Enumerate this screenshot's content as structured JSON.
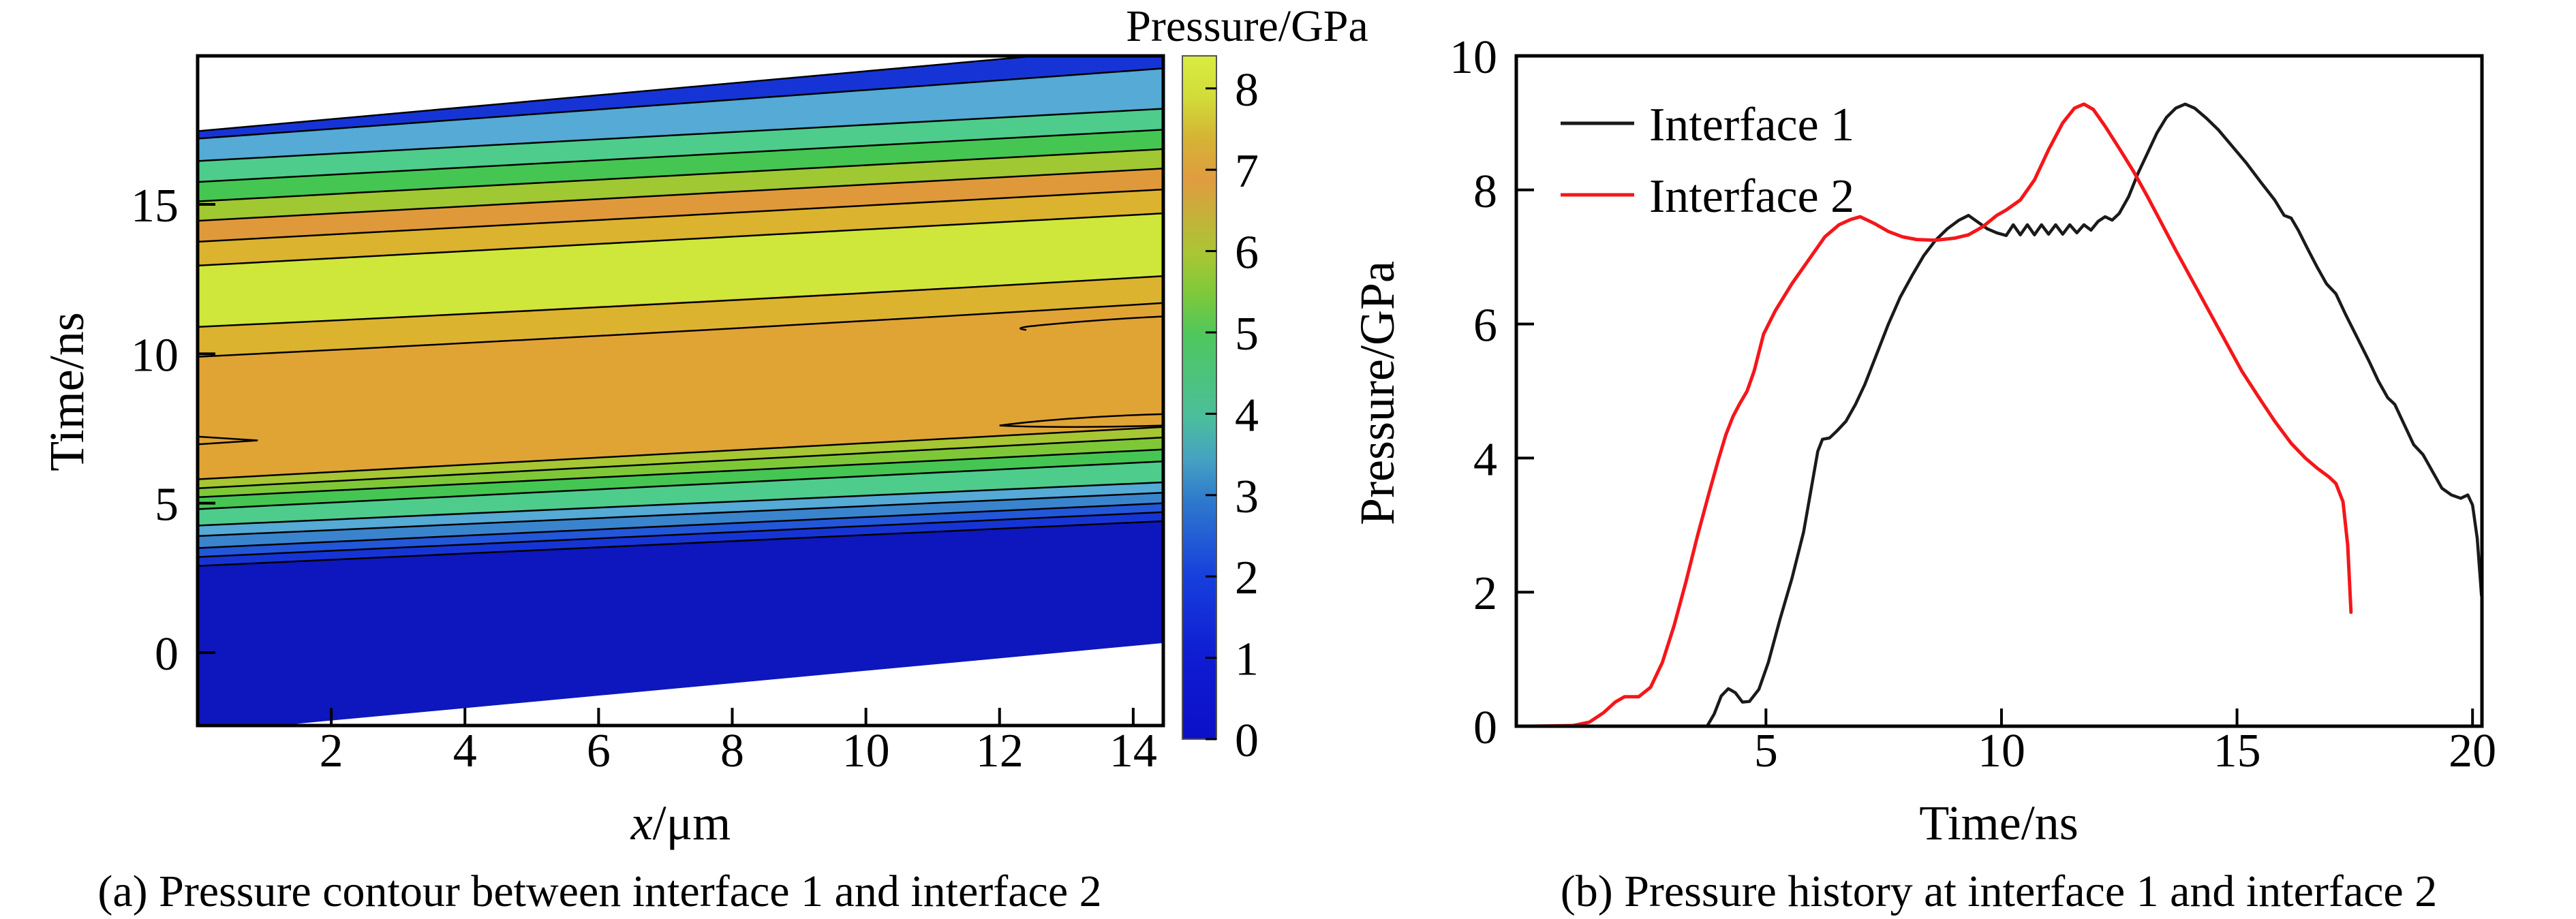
{
  "chart_data": [
    {
      "type": "heatmap",
      "panel": "a",
      "title": "(a) Pressure contour between interface 1 and interface 2",
      "xlabel": "x/μm",
      "xlabel_italic": "x",
      "xlabel_unit": "/μm",
      "ylabel": "Time/ns",
      "x_range": [
        0,
        14.45
      ],
      "y_range": [
        -2.44,
        19.97
      ],
      "x_ticks": [
        2,
        4,
        6,
        8,
        10,
        12,
        14
      ],
      "y_ticks": [
        0,
        5,
        10,
        15
      ],
      "grid": false,
      "colorbar": {
        "label": "Pressure/GPa",
        "range": [
          0,
          8.4
        ],
        "ticks": [
          0,
          1,
          2,
          3,
          4,
          5,
          6,
          7,
          8
        ],
        "gradient_stops": [
          {
            "offset": 0.0,
            "color": "#0c10c8"
          },
          {
            "offset": 0.12,
            "color": "#0f1cd2"
          },
          {
            "offset": 0.24,
            "color": "#1740dc"
          },
          {
            "offset": 0.35,
            "color": "#2f7acc"
          },
          {
            "offset": 0.41,
            "color": "#46a2c2"
          },
          {
            "offset": 0.47,
            "color": "#4bbe9c"
          },
          {
            "offset": 0.59,
            "color": "#4ec75e"
          },
          {
            "offset": 0.65,
            "color": "#7cc93b"
          },
          {
            "offset": 0.71,
            "color": "#a9c634"
          },
          {
            "offset": 0.82,
            "color": "#e09c40"
          },
          {
            "offset": 0.88,
            "color": "#d4b434"
          },
          {
            "offset": 0.94,
            "color": "#d2dc3a"
          },
          {
            "offset": 1.0,
            "color": "#d9ec40"
          }
        ]
      },
      "contour_boundaries": [
        [
          -2.69,
          0.32
        ],
        [
          2.9,
          4.4
        ],
        [
          3.2,
          4.7
        ],
        [
          3.5,
          5.0
        ],
        [
          3.9,
          5.35
        ],
        [
          4.25,
          5.7
        ],
        [
          4.8,
          6.4
        ],
        [
          5.2,
          6.8
        ],
        [
          5.5,
          7.2
        ],
        [
          5.8,
          7.55
        ],
        [
          9.9,
          11.7
        ],
        [
          10.9,
          12.6
        ],
        [
          12.95,
          14.7
        ],
        [
          13.75,
          15.5
        ],
        [
          14.45,
          16.2
        ],
        [
          15.1,
          16.85
        ],
        [
          15.75,
          17.5
        ],
        [
          16.45,
          18.2
        ],
        [
          17.2,
          19.55
        ],
        [
          17.45,
          20.35
        ]
      ],
      "band_colors": [
        "#0d17bd",
        "#1634d6",
        "#2257da",
        "#3a84cd",
        "#55aad6",
        "#4ecc8c",
        "#45c653",
        "#7ec838",
        "#a6c634",
        "#e0a435",
        "#dcb32e",
        "#cfe73a",
        "#dcb32e",
        "#e0993a",
        "#a0c832",
        "#45c653",
        "#4ecc8c",
        "#55aad6",
        "#1634d6"
      ],
      "features": {
        "left_sliver_t": 7.1,
        "right_lens_t": 7.8,
        "right_hook_t": 11.0
      }
    },
    {
      "type": "line",
      "panel": "b",
      "title": "(b) Pressure history at interface 1 and interface 2",
      "xlabel": "Time/ns",
      "ylabel": "Pressure/GPa",
      "x_range": [
        -0.3,
        20.2
      ],
      "ylim": [
        0,
        10
      ],
      "x_ticks": [
        5,
        10,
        15,
        20
      ],
      "y_ticks": [
        0,
        2,
        4,
        6,
        8,
        10
      ],
      "legend_position": "top-left",
      "series": [
        {
          "name": "Interface 1",
          "color": "#1a1a1a",
          "points": [
            [
              3.75,
              0
            ],
            [
              3.9,
              0.18
            ],
            [
              4.05,
              0.45
            ],
            [
              4.2,
              0.56
            ],
            [
              4.35,
              0.5
            ],
            [
              4.5,
              0.36
            ],
            [
              4.65,
              0.37
            ],
            [
              4.85,
              0.55
            ],
            [
              5.05,
              0.95
            ],
            [
              5.3,
              1.6
            ],
            [
              5.55,
              2.2
            ],
            [
              5.8,
              2.9
            ],
            [
              5.95,
              3.5
            ],
            [
              6.1,
              4.1
            ],
            [
              6.2,
              4.28
            ],
            [
              6.35,
              4.3
            ],
            [
              6.5,
              4.4
            ],
            [
              6.7,
              4.55
            ],
            [
              6.9,
              4.8
            ],
            [
              7.1,
              5.1
            ],
            [
              7.35,
              5.55
            ],
            [
              7.6,
              6.0
            ],
            [
              7.85,
              6.4
            ],
            [
              8.1,
              6.72
            ],
            [
              8.35,
              7.02
            ],
            [
              8.6,
              7.25
            ],
            [
              8.85,
              7.42
            ],
            [
              9.1,
              7.55
            ],
            [
              9.3,
              7.62
            ],
            [
              9.5,
              7.52
            ],
            [
              9.7,
              7.42
            ],
            [
              9.9,
              7.36
            ],
            [
              10.1,
              7.32
            ],
            [
              10.25,
              7.48
            ],
            [
              10.4,
              7.33
            ],
            [
              10.55,
              7.48
            ],
            [
              10.7,
              7.33
            ],
            [
              10.85,
              7.48
            ],
            [
              11.0,
              7.34
            ],
            [
              11.15,
              7.48
            ],
            [
              11.3,
              7.34
            ],
            [
              11.45,
              7.48
            ],
            [
              11.6,
              7.36
            ],
            [
              11.75,
              7.48
            ],
            [
              11.9,
              7.4
            ],
            [
              12.05,
              7.53
            ],
            [
              12.2,
              7.6
            ],
            [
              12.35,
              7.55
            ],
            [
              12.5,
              7.65
            ],
            [
              12.7,
              7.9
            ],
            [
              12.9,
              8.25
            ],
            [
              13.1,
              8.55
            ],
            [
              13.3,
              8.85
            ],
            [
              13.5,
              9.08
            ],
            [
              13.7,
              9.22
            ],
            [
              13.9,
              9.28
            ],
            [
              14.1,
              9.22
            ],
            [
              14.35,
              9.07
            ],
            [
              14.6,
              8.9
            ],
            [
              14.9,
              8.65
            ],
            [
              15.2,
              8.4
            ],
            [
              15.5,
              8.12
            ],
            [
              15.8,
              7.85
            ],
            [
              16.0,
              7.62
            ],
            [
              16.15,
              7.58
            ],
            [
              16.3,
              7.4
            ],
            [
              16.5,
              7.12
            ],
            [
              16.7,
              6.85
            ],
            [
              16.9,
              6.6
            ],
            [
              17.1,
              6.45
            ],
            [
              17.3,
              6.15
            ],
            [
              17.55,
              5.8
            ],
            [
              17.8,
              5.45
            ],
            [
              18.0,
              5.15
            ],
            [
              18.2,
              4.9
            ],
            [
              18.35,
              4.8
            ],
            [
              18.55,
              4.5
            ],
            [
              18.75,
              4.2
            ],
            [
              18.95,
              4.05
            ],
            [
              19.15,
              3.8
            ],
            [
              19.35,
              3.55
            ],
            [
              19.55,
              3.45
            ],
            [
              19.75,
              3.4
            ],
            [
              19.9,
              3.45
            ],
            [
              20.0,
              3.3
            ],
            [
              20.1,
              2.8
            ],
            [
              20.19,
              1.95
            ]
          ]
        },
        {
          "name": "Interface 2",
          "color": "#f5161a",
          "points": [
            [
              0,
              0
            ],
            [
              0.9,
              0.01
            ],
            [
              1.25,
              0.06
            ],
            [
              1.55,
              0.2
            ],
            [
              1.8,
              0.36
            ],
            [
              2.0,
              0.44
            ],
            [
              2.3,
              0.44
            ],
            [
              2.55,
              0.58
            ],
            [
              2.8,
              0.95
            ],
            [
              3.05,
              1.5
            ],
            [
              3.3,
              2.15
            ],
            [
              3.55,
              2.85
            ],
            [
              3.8,
              3.5
            ],
            [
              4.0,
              4.0
            ],
            [
              4.15,
              4.35
            ],
            [
              4.3,
              4.62
            ],
            [
              4.45,
              4.82
            ],
            [
              4.6,
              5.0
            ],
            [
              4.75,
              5.3
            ],
            [
              4.95,
              5.85
            ],
            [
              5.2,
              6.2
            ],
            [
              5.55,
              6.6
            ],
            [
              5.9,
              6.95
            ],
            [
              6.25,
              7.3
            ],
            [
              6.55,
              7.48
            ],
            [
              6.8,
              7.56
            ],
            [
              7.0,
              7.6
            ],
            [
              7.3,
              7.5
            ],
            [
              7.6,
              7.38
            ],
            [
              7.9,
              7.3
            ],
            [
              8.2,
              7.26
            ],
            [
              8.6,
              7.25
            ],
            [
              9.0,
              7.28
            ],
            [
              9.3,
              7.33
            ],
            [
              9.6,
              7.45
            ],
            [
              9.9,
              7.62
            ],
            [
              10.1,
              7.7
            ],
            [
              10.4,
              7.85
            ],
            [
              10.7,
              8.15
            ],
            [
              11.0,
              8.6
            ],
            [
              11.3,
              9.0
            ],
            [
              11.55,
              9.22
            ],
            [
              11.75,
              9.28
            ],
            [
              11.95,
              9.2
            ],
            [
              12.2,
              8.95
            ],
            [
              12.5,
              8.62
            ],
            [
              12.8,
              8.28
            ],
            [
              13.1,
              7.9
            ],
            [
              13.4,
              7.5
            ],
            [
              13.7,
              7.1
            ],
            [
              14.05,
              6.65
            ],
            [
              14.4,
              6.2
            ],
            [
              14.75,
              5.75
            ],
            [
              15.1,
              5.3
            ],
            [
              15.45,
              4.92
            ],
            [
              15.8,
              4.55
            ],
            [
              16.15,
              4.22
            ],
            [
              16.45,
              4.0
            ],
            [
              16.7,
              3.85
            ],
            [
              16.95,
              3.72
            ],
            [
              17.1,
              3.62
            ],
            [
              17.25,
              3.35
            ],
            [
              17.35,
              2.7
            ],
            [
              17.42,
              1.7
            ]
          ]
        }
      ]
    }
  ]
}
